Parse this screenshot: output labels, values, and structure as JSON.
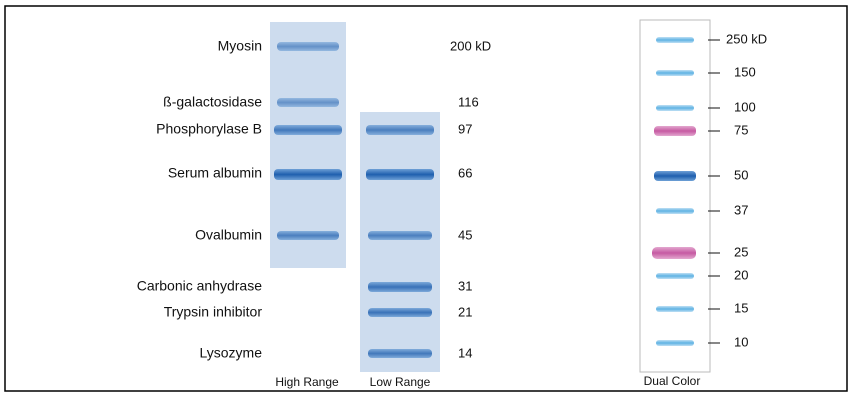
{
  "left_panel": {
    "markers": [
      {
        "name": "Myosin",
        "size": "200 kD"
      },
      {
        "name": "ß-galactosidase",
        "size": "116"
      },
      {
        "name": "Phosphorylase B",
        "size": "97"
      },
      {
        "name": "Serum albumin",
        "size": "66"
      },
      {
        "name": "Ovalbumin",
        "size": "45"
      },
      {
        "name": "Carbonic anhydrase",
        "size": "31"
      },
      {
        "name": "Trypsin inhibitor",
        "size": "21"
      },
      {
        "name": "Lysozyme",
        "size": "14"
      }
    ],
    "lanes": [
      "High Range",
      "Low Range"
    ]
  },
  "right_panel": {
    "lane": "Dual Color",
    "markers": [
      "250 kD",
      "150",
      "100",
      "75",
      "50",
      "37",
      "25",
      "20",
      "15",
      "10"
    ]
  }
}
